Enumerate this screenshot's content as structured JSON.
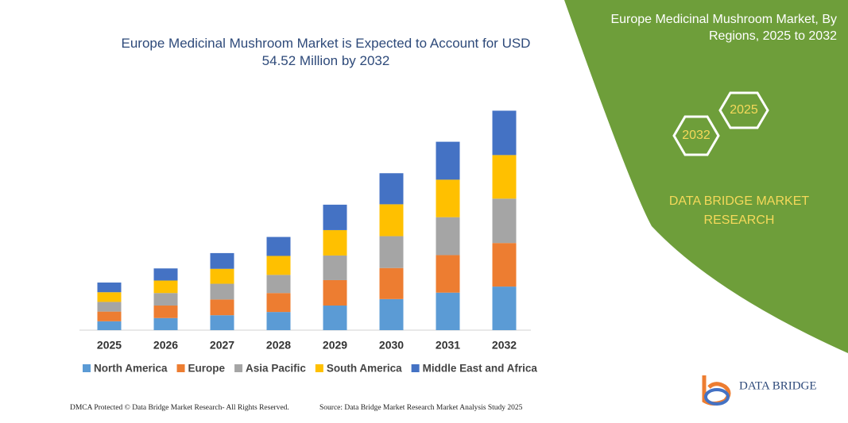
{
  "chart_data": {
    "type": "stacked_bar",
    "title": "Europe Medicinal Mushroom Market is Expected to Account for USD 54.52 Million by 2032",
    "categories": [
      "2025",
      "2026",
      "2027",
      "2028",
      "2029",
      "2030",
      "2031",
      "2032"
    ],
    "series": [
      {
        "name": "North America",
        "color": "#5b9bd5",
        "values": [
          2.2,
          3.0,
          3.7,
          4.5,
          6.1,
          7.7,
          9.3,
          10.8
        ]
      },
      {
        "name": "Europe",
        "color": "#ed7d31",
        "values": [
          2.4,
          3.1,
          3.9,
          4.7,
          6.3,
          7.7,
          9.3,
          10.8
        ]
      },
      {
        "name": "Asia Pacific",
        "color": "#a5a5a5",
        "values": [
          2.4,
          3.1,
          3.9,
          4.5,
          6.1,
          7.9,
          9.4,
          11.0
        ]
      },
      {
        "name": "South America",
        "color": "#ffc000",
        "values": [
          2.4,
          3.1,
          3.7,
          4.7,
          6.3,
          7.9,
          9.3,
          10.8
        ]
      },
      {
        "name": "Middle East and Africa",
        "color": "#4472c4",
        "values": [
          2.4,
          3.0,
          3.9,
          4.7,
          6.3,
          7.7,
          9.4,
          11.0
        ]
      }
    ],
    "ylim": [
      0,
      60
    ],
    "legend": "bottom"
  },
  "panel": {
    "title": "Europe Medicinal Mushroom Market, By Regions, 2025 to 2032",
    "hex_years": [
      "2032",
      "2025"
    ],
    "brand": "DATA BRIDGE MARKET RESEARCH"
  },
  "logo": "DATA BRIDGE",
  "footer": {
    "left": "DMCA Protected © Data Bridge Market Research- All Rights Reserved.",
    "right": "Source: Data Bridge Market Research Market Analysis Study 2025"
  }
}
